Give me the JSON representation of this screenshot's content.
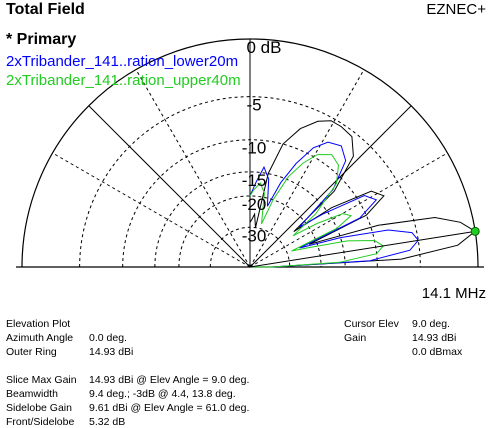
{
  "header": {
    "title": "Total Field",
    "brand": "EZNEC+"
  },
  "legend": {
    "primary_label": "* Primary",
    "entries": [
      {
        "label": "2xTribander_141..ration_lower20m",
        "color": "#0000ff"
      },
      {
        "label": "2xTribander_141..ration_upper40m",
        "color": "#22cc22"
      }
    ]
  },
  "frequency": "14.1 MHz",
  "ring_labels": [
    "0 dB",
    "-5",
    "-10",
    "-15",
    "-20",
    "-30"
  ],
  "info_left": [
    {
      "label": "Elevation Plot",
      "value": ""
    },
    {
      "label": "Azimuth Angle",
      "value": "0.0 deg."
    },
    {
      "label": "Outer Ring",
      "value": "14.93 dBi"
    }
  ],
  "info_right": [
    {
      "label": "Cursor Elev",
      "value": "9.0 deg."
    },
    {
      "label": "Gain",
      "value": "14.93 dBi"
    },
    {
      "label": "",
      "value": "0.0 dBmax"
    }
  ],
  "stats": [
    {
      "label": "Slice Max Gain",
      "value": "14.93 dBi @ Elev Angle = 9.0 deg."
    },
    {
      "label": "Beamwidth",
      "value": "9.4 deg.; -3dB @ 4.4, 13.8 deg."
    },
    {
      "label": "Sidelobe Gain",
      "value": "9.61 dBi @ Elev Angle = 61.0 deg."
    },
    {
      "label": "Front/Sidelobe",
      "value": "5.32 dB"
    }
  ],
  "chart_data": {
    "type": "polar-elevation",
    "ring_db": [
      0,
      -5,
      -10,
      -15,
      -20,
      -30
    ],
    "max_gain_dbi": 14.93,
    "cursor_elev_deg": 9.0,
    "grid": true,
    "series": [
      {
        "color": "#000000",
        "points": [
          [
            0,
            -40
          ],
          [
            3,
            -7
          ],
          [
            6,
            -1.5
          ],
          [
            9,
            0
          ],
          [
            12,
            -1
          ],
          [
            15,
            -3
          ],
          [
            18,
            -9
          ],
          [
            21,
            -22
          ],
          [
            24,
            -10
          ],
          [
            28,
            -7
          ],
          [
            32,
            -8
          ],
          [
            36,
            -14
          ],
          [
            39,
            -24
          ],
          [
            42,
            -12
          ],
          [
            47,
            -7
          ],
          [
            52,
            -5.5
          ],
          [
            57,
            -5.3
          ],
          [
            61,
            -5.32
          ],
          [
            65,
            -6
          ],
          [
            70,
            -7.5
          ],
          [
            75,
            -10
          ],
          [
            79,
            -15
          ],
          [
            82,
            -30
          ],
          [
            85,
            -25
          ],
          [
            88,
            -27
          ],
          [
            90,
            -28
          ]
        ]
      },
      {
        "color": "#0000ff",
        "points": [
          [
            0,
            -40
          ],
          [
            3,
            -11
          ],
          [
            6,
            -6
          ],
          [
            9,
            -5
          ],
          [
            12,
            -5.5
          ],
          [
            15,
            -8
          ],
          [
            18,
            -15
          ],
          [
            21,
            -25
          ],
          [
            24,
            -11
          ],
          [
            28,
            -8
          ],
          [
            32,
            -9
          ],
          [
            36,
            -16
          ],
          [
            39,
            -22
          ],
          [
            43,
            -12
          ],
          [
            48,
            -8
          ],
          [
            53,
            -7
          ],
          [
            58,
            -7.5
          ],
          [
            62,
            -9
          ],
          [
            66,
            -12
          ],
          [
            70,
            -16
          ],
          [
            74,
            -22
          ],
          [
            78,
            -16
          ],
          [
            82,
            -14
          ],
          [
            86,
            -17
          ],
          [
            90,
            -20
          ]
        ]
      },
      {
        "color": "#22cc22",
        "points": [
          [
            0,
            -40
          ],
          [
            3,
            -16
          ],
          [
            6,
            -10
          ],
          [
            9,
            -9
          ],
          [
            12,
            -10
          ],
          [
            15,
            -14
          ],
          [
            18,
            -22
          ],
          [
            21,
            -28
          ],
          [
            24,
            -15
          ],
          [
            27,
            -12
          ],
          [
            30,
            -13
          ],
          [
            33,
            -18
          ],
          [
            36,
            -25
          ],
          [
            39,
            -17
          ],
          [
            44,
            -11
          ],
          [
            49,
            -9
          ],
          [
            54,
            -8.5
          ],
          [
            59,
            -9.5
          ],
          [
            63,
            -11.5
          ],
          [
            67,
            -14.5
          ],
          [
            71,
            -20
          ],
          [
            75,
            -28
          ],
          [
            79,
            -19
          ],
          [
            83,
            -17
          ],
          [
            87,
            -18.5
          ],
          [
            90,
            -20
          ]
        ]
      }
    ]
  }
}
